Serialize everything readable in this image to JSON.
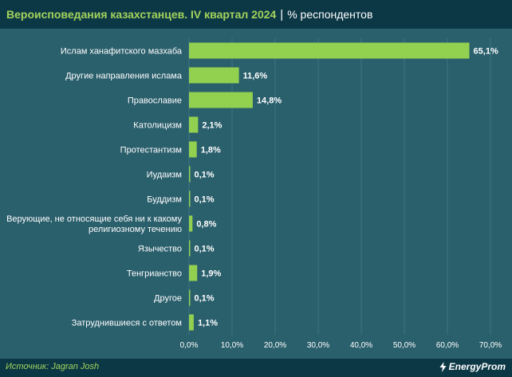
{
  "header": {
    "title": "Вероисповедания казахстанцев. IV квартал 2024",
    "separator": "|",
    "subtitle": "% респондентов"
  },
  "footer": {
    "source_label": "Источник:",
    "source_value": "Jagran Josh",
    "brand": "EnergyProm"
  },
  "colors": {
    "background": "#2a5f6c",
    "header_bg": "#0c3846",
    "bar": "#92d050",
    "accent_text": "#a3d35b",
    "text": "#ffffff",
    "grid": "#3f7582"
  },
  "icons": {
    "brand": "lightning-bolt-icon"
  },
  "chart_data": {
    "type": "bar",
    "orientation": "horizontal",
    "categories": [
      "Ислам ханафитского мазхаба",
      "Другие направления ислама",
      "Православие",
      "Католицизм",
      "Протестантизм",
      "Иудаизм",
      "Буддизм",
      "Верующие, не относящие себя ни к какому религиозному течению",
      "Язычество",
      "Тенгрианство",
      "Другое",
      "Затруднившиеся с ответом"
    ],
    "category_lines": [
      [
        "Ислам ханафитского мазхаба"
      ],
      [
        "Другие направления ислама"
      ],
      [
        "Православие"
      ],
      [
        "Католицизм"
      ],
      [
        "Протестантизм"
      ],
      [
        "Иудаизм"
      ],
      [
        "Буддизм"
      ],
      [
        "Верующие, не относящие себя ни к какому",
        "религиозному течению"
      ],
      [
        "Язычество"
      ],
      [
        "Тенгрианство"
      ],
      [
        "Другое"
      ],
      [
        "Затруднившиеся с ответом"
      ]
    ],
    "values": [
      65.1,
      11.6,
      14.8,
      2.1,
      1.8,
      0.1,
      0.1,
      0.8,
      0.1,
      1.9,
      0.1,
      1.1
    ],
    "value_labels": [
      "65,1%",
      "11,6%",
      "14,8%",
      "2,1%",
      "1,8%",
      "0,1%",
      "0,1%",
      "0,8%",
      "0,1%",
      "1,9%",
      "0,1%",
      "1,1%"
    ],
    "xlim": [
      0,
      70
    ],
    "xticks": [
      0,
      10,
      20,
      30,
      40,
      50,
      60,
      70
    ],
    "xtick_labels": [
      "0,0%",
      "10,0%",
      "20,0%",
      "30,0%",
      "40,0%",
      "50,0%",
      "60,0%",
      "70,0%"
    ],
    "grid": true,
    "legend": "none"
  }
}
